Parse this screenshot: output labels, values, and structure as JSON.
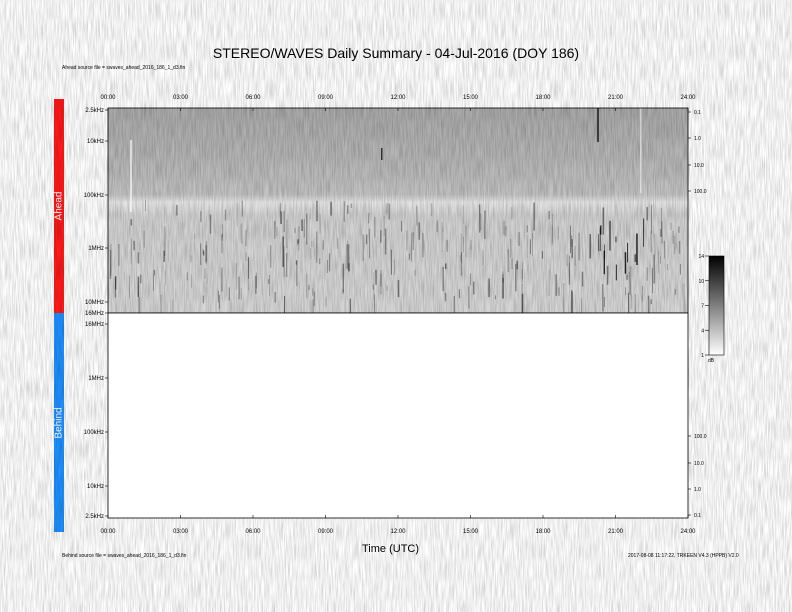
{
  "page": {
    "title": "STEREO/WAVES Daily Summary - 04-Jul-2016 (DOY 186)",
    "ahead_source_note": "Ahead source file = swaves_ahead_2016_186_1_d3.fin",
    "behind_source_note": "Behind source file = swaves_ahead_2016_186_1_d3.fin",
    "footer_right_note": "2017-08-08 11:17:22, TRKEEN V4.3 (HPPB) V2.0",
    "ahead_label": "Ahead",
    "behind_label": "Behind",
    "x_axis_label": "Time (UTC)",
    "colorbar_unit": "dB",
    "colors": {
      "ahead": "#ff1a1a",
      "behind": "#1e90ff"
    }
  },
  "chart_data": {
    "type": "heatmap",
    "title": "STEREO/WAVES Daily Summary - 04-Jul-2016 (DOY 186)",
    "xlabel": "Time (UTC)",
    "x_ticks": [
      "00:00",
      "03:00",
      "06:00",
      "09:00",
      "12:00",
      "15:00",
      "18:00",
      "21:00",
      "24:00"
    ],
    "xlim": [
      0,
      24
    ],
    "panels": [
      {
        "name": "Ahead",
        "y_ticks": [
          "2.5kHz",
          "10kHz",
          "100kHz",
          "1MHz",
          "10MHz",
          "16MHz"
        ],
        "y_ticks_right": [
          "0.1",
          "1.0",
          "10.0",
          "100.0"
        ],
        "data_present": true
      },
      {
        "name": "Behind",
        "y_ticks": [
          "16MHz",
          "1MHz",
          "100kHz",
          "10kHz",
          "2.5kHz"
        ],
        "y_ticks_right": [
          "100.0",
          "10.0",
          "1.0",
          "0.1"
        ],
        "data_present": false
      }
    ],
    "colorbar": {
      "ticks": [
        "14",
        "10",
        "7",
        "4",
        "1"
      ],
      "range": [
        1,
        14
      ],
      "unit": "dB"
    }
  }
}
